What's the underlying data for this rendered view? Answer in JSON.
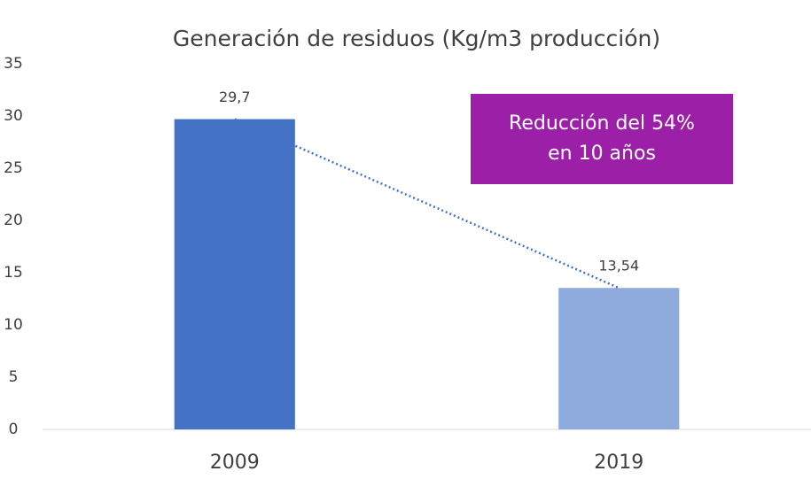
{
  "chart_data": {
    "type": "bar",
    "title": "Generación de residuos  (Kg/m3 producción)",
    "categories": [
      "2009",
      "2019"
    ],
    "values": [
      29.7,
      13.54
    ],
    "value_labels": [
      "29,7",
      "13,54"
    ],
    "colors": [
      "#4472c4",
      "#8faadc"
    ],
    "ylim": [
      0,
      35
    ],
    "yticks": [
      0,
      5,
      10,
      15,
      20,
      25,
      30,
      35
    ],
    "grid": false,
    "trendline": true,
    "trendline_color": "#4472c4",
    "annotation": [
      "Reducción del 54%",
      "en 10 años"
    ],
    "annotation_color": "#9c1fa8"
  }
}
